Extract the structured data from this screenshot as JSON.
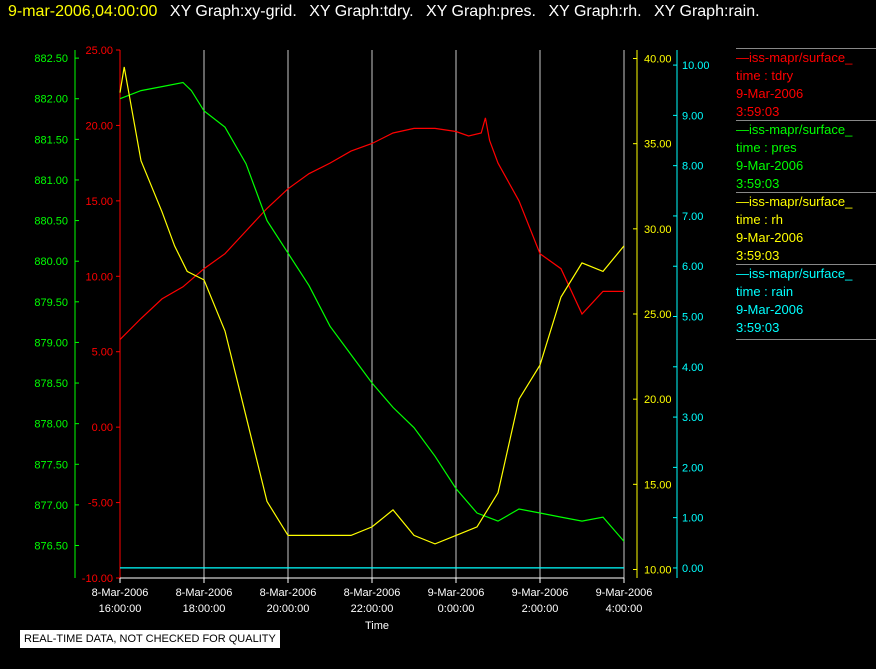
{
  "header": {
    "timestamp": "9-mar-2006,04:00:00",
    "graphs": [
      "XY Graph:xy-grid.",
      "XY Graph:tdry.",
      "XY Graph:pres.",
      "XY Graph:rh.",
      "XY Graph:rain."
    ]
  },
  "footer_note": "REAL-TIME DATA, NOT CHECKED FOR QUALITY",
  "colors": {
    "tdry": "#ff0000",
    "pres": "#00ff00",
    "rh": "#ffff00",
    "rain": "#00ffff",
    "grid": "#c8c8c8"
  },
  "legend": [
    {
      "source": "iss-mapr/surface_",
      "var": "time : tdry",
      "date": "9-Mar-2006",
      "time": "3:59:03",
      "color": "#ff0000"
    },
    {
      "source": "iss-mapr/surface_",
      "var": "time : pres",
      "date": "9-Mar-2006",
      "time": "3:59:03",
      "color": "#00ff00"
    },
    {
      "source": "iss-mapr/surface_",
      "var": "time : rh",
      "date": "9-Mar-2006",
      "time": "3:59:03",
      "color": "#ffff00"
    },
    {
      "source": "iss-mapr/surface_",
      "var": "time : rain",
      "date": "9-Mar-2006",
      "time": "3:59:03",
      "color": "#00ffff"
    }
  ],
  "chart_data": {
    "type": "line",
    "xlabel": "Time",
    "x_ticks": [
      {
        "date": "8-Mar-2006",
        "time": "16:00:00",
        "hour": 0
      },
      {
        "date": "8-Mar-2006",
        "time": "18:00:00",
        "hour": 2
      },
      {
        "date": "8-Mar-2006",
        "time": "20:00:00",
        "hour": 4
      },
      {
        "date": "8-Mar-2006",
        "time": "22:00:00",
        "hour": 6
      },
      {
        "date": "9-Mar-2006",
        "time": "0:00:00",
        "hour": 8
      },
      {
        "date": "9-Mar-2006",
        "time": "2:00:00",
        "hour": 10
      },
      {
        "date": "9-Mar-2006",
        "time": "4:00:00",
        "hour": 12
      }
    ],
    "xlim_hours": [
      0,
      12
    ],
    "axes": {
      "pres": {
        "ticks": [
          "882.50",
          "882.00",
          "881.50",
          "881.00",
          "880.50",
          "880.00",
          "879.50",
          "879.00",
          "878.50",
          "878.00",
          "877.50",
          "877.00",
          "876.50"
        ],
        "ylim": [
          876.1,
          882.6
        ],
        "color": "#00ff00"
      },
      "tdry": {
        "ticks": [
          "25.00",
          "20.00",
          "15.00",
          "10.00",
          "5.00",
          "0.00",
          "-5.00",
          "-10.00"
        ],
        "ylim": [
          -10,
          25
        ],
        "color": "#ff0000"
      },
      "rh": {
        "ticks": [
          "40.00",
          "35.00",
          "30.00",
          "25.00",
          "20.00",
          "15.00",
          "10.00"
        ],
        "ylim": [
          9.5,
          40.5
        ],
        "color": "#ffff00"
      },
      "rain": {
        "ticks": [
          "10.00",
          "9.00",
          "8.00",
          "7.00",
          "6.00",
          "5.00",
          "4.00",
          "3.00",
          "2.00",
          "1.00",
          "0.00"
        ],
        "ylim": [
          -0.2,
          10.3
        ],
        "color": "#00ffff"
      }
    },
    "series": [
      {
        "name": "tdry",
        "axis": "tdry",
        "color": "#ff0000",
        "x": [
          0,
          0.5,
          1,
          1.5,
          2,
          2.5,
          3,
          3.5,
          4,
          4.5,
          5,
          5.5,
          6,
          6.5,
          7,
          7.5,
          8,
          8.3,
          8.6,
          8.7,
          8.8,
          9,
          9.5,
          10,
          10.5,
          11,
          11.5,
          12
        ],
        "values": [
          5.8,
          7.2,
          8.5,
          9.3,
          10.5,
          11.5,
          13.0,
          14.5,
          15.8,
          16.8,
          17.5,
          18.3,
          18.8,
          19.5,
          19.8,
          19.8,
          19.6,
          19.3,
          19.5,
          20.5,
          19.0,
          17.5,
          15.0,
          11.5,
          10.5,
          7.5,
          9.0,
          9.0
        ]
      },
      {
        "name": "pres",
        "axis": "pres",
        "color": "#00ff00",
        "x": [
          0,
          0.5,
          1,
          1.5,
          1.7,
          2,
          2.5,
          3,
          3.5,
          4,
          4.5,
          5,
          5.5,
          6,
          6.5,
          7,
          7.5,
          8,
          8.5,
          9,
          9.5,
          10,
          10.5,
          11,
          11.5,
          12
        ],
        "values": [
          882.0,
          882.1,
          882.15,
          882.2,
          882.1,
          881.85,
          881.65,
          881.2,
          880.5,
          880.1,
          879.7,
          879.2,
          878.85,
          878.5,
          878.2,
          877.95,
          877.6,
          877.2,
          876.9,
          876.8,
          876.95,
          876.9,
          876.85,
          876.8,
          876.85,
          876.55
        ]
      },
      {
        "name": "rh",
        "axis": "rh",
        "color": "#ffff00",
        "x": [
          0,
          0.1,
          0.5,
          1,
          1.3,
          1.6,
          2,
          2.5,
          3,
          3.5,
          4,
          4.5,
          5,
          5.5,
          6,
          6.5,
          7,
          7.5,
          8,
          8.5,
          9,
          9.5,
          10,
          10.5,
          11,
          11.5,
          12
        ],
        "values": [
          38,
          39.5,
          34,
          31,
          29,
          27.5,
          27,
          24,
          19,
          14,
          12,
          12,
          12,
          12,
          12.5,
          13.5,
          12,
          11.5,
          12,
          12.5,
          14.5,
          20,
          22,
          26,
          28,
          27.5,
          29
        ]
      },
      {
        "name": "rain",
        "axis": "rain",
        "color": "#00ffff",
        "x": [
          0,
          12
        ],
        "values": [
          0,
          0
        ]
      }
    ]
  }
}
